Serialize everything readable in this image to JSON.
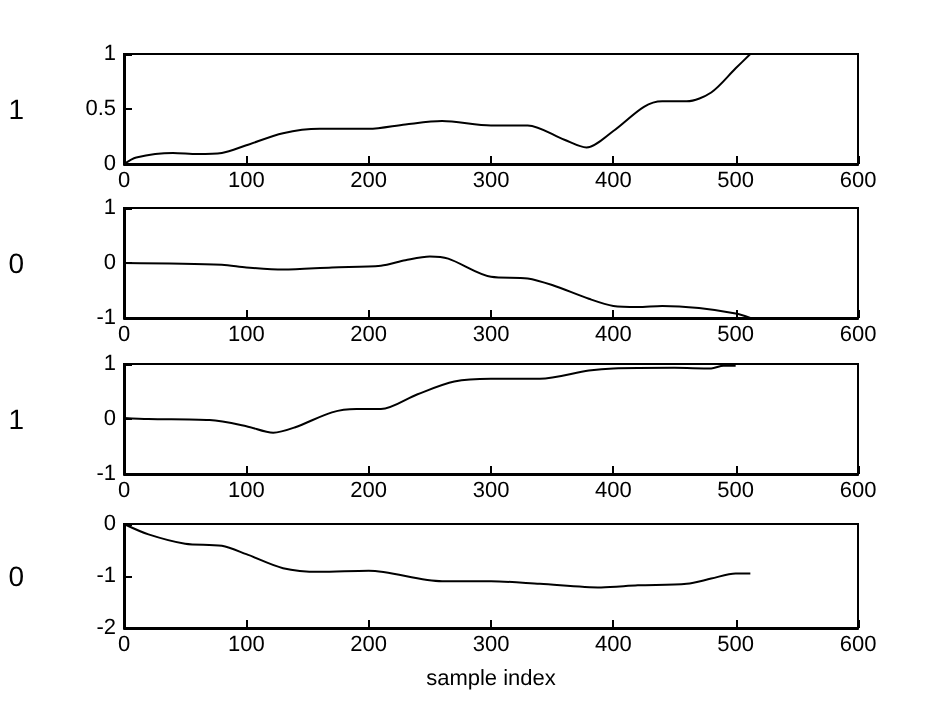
{
  "chart_data": [
    {
      "type": "line",
      "ylabel": "1",
      "color": "#000000",
      "x": [
        0,
        10,
        40,
        60,
        80,
        100,
        130,
        160,
        200,
        230,
        260,
        300,
        330,
        360,
        378,
        400,
        425,
        440,
        460,
        480,
        500,
        512
      ],
      "values": [
        0,
        0.06,
        0.1,
        0.09,
        0.1,
        0.17,
        0.28,
        0.32,
        0.32,
        0.36,
        0.39,
        0.35,
        0.35,
        0.22,
        0.15,
        0.3,
        0.52,
        0.57,
        0.57,
        0.65,
        0.87,
        1.0
      ],
      "xlim": [
        0,
        600
      ],
      "xticks": [
        0,
        100,
        200,
        300,
        400,
        500,
        600
      ],
      "ylim": [
        0,
        1
      ],
      "yticks": [
        0,
        0.5,
        1
      ],
      "grid": false
    },
    {
      "type": "line",
      "ylabel": "0",
      "color": "#000000",
      "x": [
        0,
        80,
        100,
        130,
        170,
        210,
        230,
        250,
        265,
        300,
        330,
        350,
        380,
        400,
        420,
        440,
        470,
        500,
        512
      ],
      "values": [
        0,
        -0.03,
        -0.08,
        -0.12,
        -0.08,
        -0.05,
        0.05,
        0.12,
        0.08,
        -0.25,
        -0.28,
        -0.4,
        -0.65,
        -0.78,
        -0.8,
        -0.78,
        -0.82,
        -0.92,
        -1.0
      ],
      "xlim": [
        0,
        600
      ],
      "xticks": [
        0,
        100,
        200,
        300,
        400,
        500,
        600
      ],
      "ylim": [
        -1,
        1
      ],
      "yticks": [
        -1,
        0,
        1
      ],
      "grid": false
    },
    {
      "type": "line",
      "ylabel": "1",
      "color": "#000000",
      "x": [
        0,
        20,
        70,
        100,
        122,
        140,
        170,
        190,
        210,
        240,
        270,
        300,
        340,
        380,
        400,
        450,
        480,
        490,
        500
      ],
      "values": [
        0.02,
        0,
        -0.02,
        -0.13,
        -0.25,
        -0.15,
        0.12,
        0.18,
        0.18,
        0.45,
        0.68,
        0.73,
        0.73,
        0.88,
        0.92,
        0.93,
        0.92,
        0.97,
        0.97
      ],
      "xlim": [
        0,
        600
      ],
      "xticks": [
        0,
        100,
        200,
        300,
        400,
        500,
        600
      ],
      "ylim": [
        -1,
        1
      ],
      "yticks": [
        -1,
        0,
        1
      ],
      "grid": false
    },
    {
      "type": "line",
      "ylabel": "0",
      "xlabel": "sample index",
      "color": "#000000",
      "x": [
        0,
        20,
        50,
        80,
        100,
        130,
        160,
        200,
        260,
        300,
        340,
        390,
        420,
        460,
        480,
        500,
        512
      ],
      "values": [
        0,
        -0.2,
        -0.38,
        -0.42,
        -0.58,
        -0.85,
        -0.92,
        -0.9,
        -1.1,
        -1.1,
        -1.15,
        -1.22,
        -1.18,
        -1.15,
        -1.05,
        -0.95,
        -0.95
      ],
      "xlim": [
        0,
        600
      ],
      "xticks": [
        0,
        100,
        200,
        300,
        400,
        500,
        600
      ],
      "ylim": [
        -2,
        0
      ],
      "yticks": [
        -2,
        -1,
        0
      ],
      "grid": false
    }
  ]
}
